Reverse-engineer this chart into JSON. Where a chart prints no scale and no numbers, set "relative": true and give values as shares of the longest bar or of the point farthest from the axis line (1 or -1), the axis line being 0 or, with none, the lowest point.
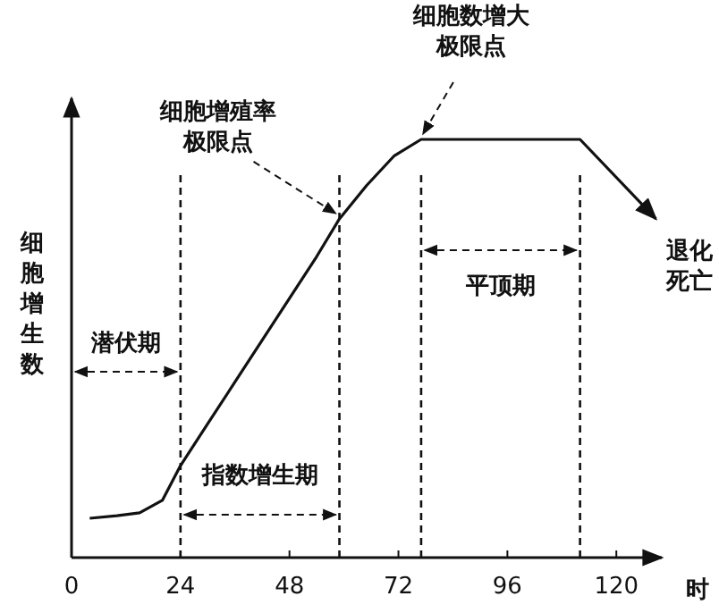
{
  "chart_data": {
    "type": "line",
    "relative": true,
    "xlabel": "时",
    "ylabel": "细胞增生数",
    "x": [
      4,
      10,
      15,
      20,
      24,
      30,
      36,
      42,
      48,
      54,
      59,
      65,
      71,
      77,
      112,
      128.7
    ],
    "values": [
      0.094,
      0.1,
      0.107,
      0.137,
      0.22,
      0.32,
      0.42,
      0.52,
      0.62,
      0.72,
      0.81,
      0.89,
      0.96,
      1,
      1,
      0.81
    ],
    "color": "#111111",
    "marker": "none",
    "line_style": "solid",
    "xlim": [
      0,
      130
    ],
    "xticks": [
      0,
      24,
      48,
      72,
      96,
      120
    ],
    "grid": false,
    "ref_lines": [
      {
        "axis": "x",
        "value": 24,
        "line_style": "dashed"
      },
      {
        "axis": "x",
        "value": 59,
        "line_style": "dashed"
      },
      {
        "axis": "x",
        "value": 77,
        "line_style": "dashed"
      },
      {
        "axis": "x",
        "value": 112,
        "line_style": "dashed"
      }
    ],
    "annotations": [
      {
        "text": "细胞增殖率极限点",
        "x": 59,
        "y": 0.81
      },
      {
        "text": "细胞数增大极限点",
        "x": 77,
        "y": 1
      },
      {
        "text": "退化死亡",
        "x": 128.7,
        "y": 0.81
      },
      "潜伏期",
      "指数增生期",
      "平顶期"
    ]
  }
}
